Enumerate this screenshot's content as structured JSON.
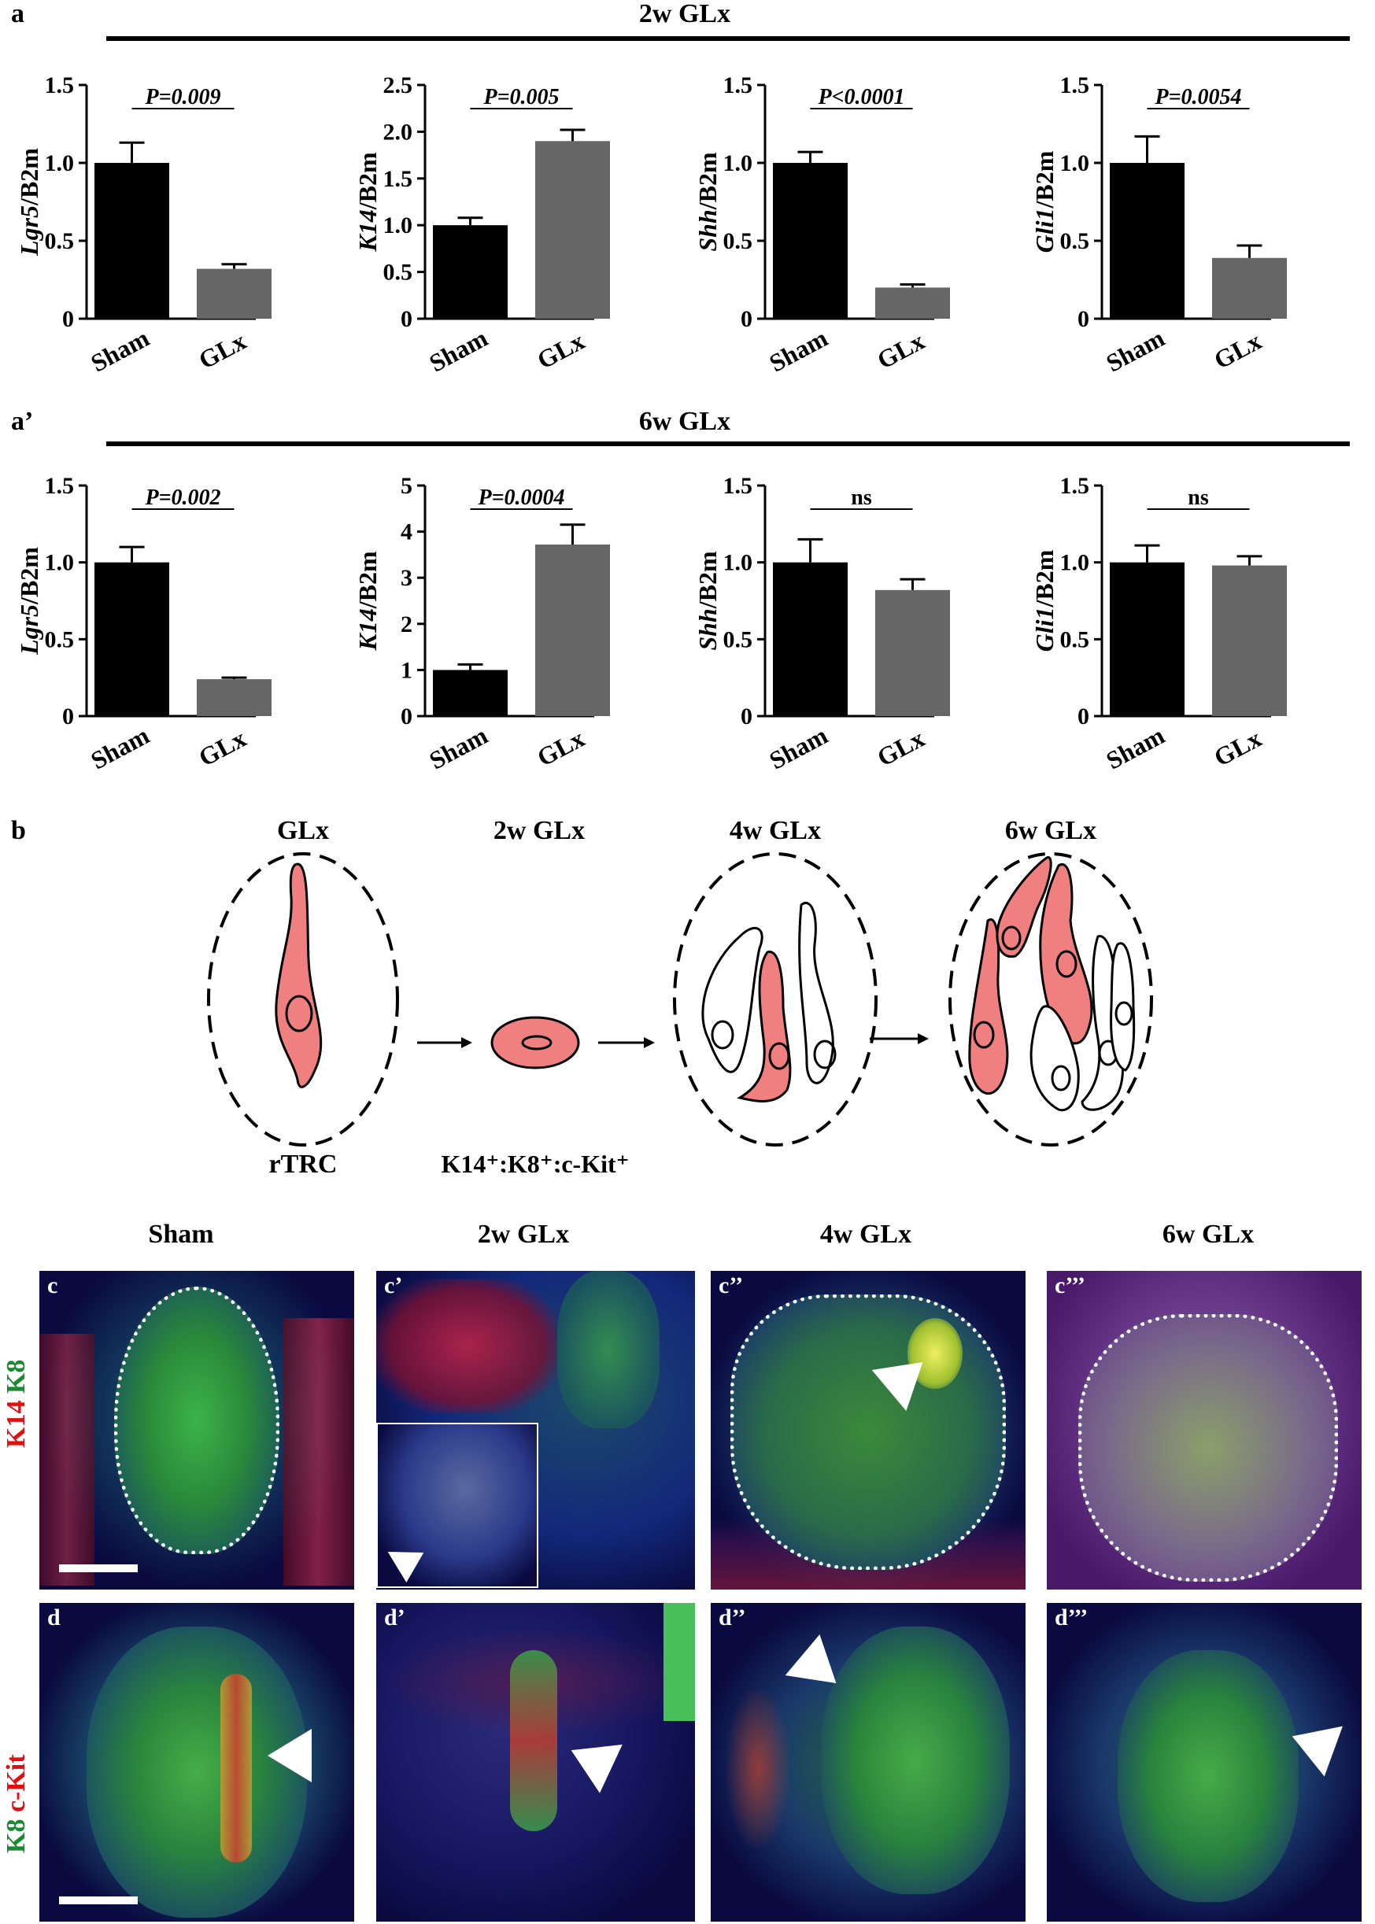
{
  "panel_a": {
    "label": "a",
    "header": "2w GLx",
    "charts": [
      {
        "ylabel_main": "Lgr5",
        "ylabel_sub": "/B2m",
        "ticks": [
          "0",
          "0.5",
          "1.0",
          "1.5"
        ],
        "ymax": 1.5,
        "pval": "P=0.009",
        "ns": false
      },
      {
        "ylabel_main": "K14",
        "ylabel_sub": "/B2m",
        "ticks": [
          "0",
          "0.5",
          "1.0",
          "1.5",
          "2.0",
          "2.5"
        ],
        "ymax": 2.5,
        "pval": "P=0.005",
        "ns": false
      },
      {
        "ylabel_main": "Shh",
        "ylabel_sub": "/B2m",
        "ticks": [
          "0",
          "0.5",
          "1.0",
          "1.5"
        ],
        "ymax": 1.5,
        "pval": "P<0.0001",
        "ns": false
      },
      {
        "ylabel_main": "Gli1",
        "ylabel_sub": "/B2m",
        "ticks": [
          "0",
          "0.5",
          "1.0",
          "1.5"
        ],
        "ymax": 1.5,
        "pval": "P=0.0054",
        "ns": false
      }
    ]
  },
  "panel_a2": {
    "label": "a’",
    "header": "6w GLx",
    "charts": [
      {
        "ylabel_main": "Lgr5",
        "ylabel_sub": "/B2m",
        "ticks": [
          "0",
          "0.5",
          "1.0",
          "1.5"
        ],
        "ymax": 1.5,
        "pval": "P=0.002",
        "ns": false
      },
      {
        "ylabel_main": "K14",
        "ylabel_sub": "/B2m",
        "ticks": [
          "0",
          "1",
          "2",
          "3",
          "4",
          "5"
        ],
        "ymax": 5,
        "pval": "P=0.0004",
        "ns": false
      },
      {
        "ylabel_main": "Shh",
        "ylabel_sub": "/B2m",
        "ticks": [
          "0",
          "0.5",
          "1.0",
          "1.5"
        ],
        "ymax": 1.5,
        "pval": "ns",
        "ns": true
      },
      {
        "ylabel_main": "Gli1",
        "ylabel_sub": "/B2m",
        "ticks": [
          "0",
          "0.5",
          "1.0",
          "1.5"
        ],
        "ymax": 1.5,
        "pval": "ns",
        "ns": true
      }
    ]
  },
  "chart_data": [
    {
      "type": "bar",
      "categories": [
        "Sham",
        "GLx"
      ],
      "values": [
        1.0,
        0.32
      ],
      "errors": [
        0.13,
        0.03
      ],
      "ylabel": "Lgr5/B2m",
      "ylim": [
        0,
        1.5
      ],
      "annotation": "P=0.009"
    },
    {
      "type": "bar",
      "categories": [
        "Sham",
        "GLx"
      ],
      "values": [
        1.0,
        1.9
      ],
      "errors": [
        0.08,
        0.12
      ],
      "ylabel": "K14/B2m",
      "ylim": [
        0,
        2.5
      ],
      "annotation": "P=0.005"
    },
    {
      "type": "bar",
      "categories": [
        "Sham",
        "GLx"
      ],
      "values": [
        1.0,
        0.2
      ],
      "errors": [
        0.07,
        0.02
      ],
      "ylabel": "Shh/B2m",
      "ylim": [
        0,
        1.5
      ],
      "annotation": "P<0.0001"
    },
    {
      "type": "bar",
      "categories": [
        "Sham",
        "GLx"
      ],
      "values": [
        1.0,
        0.39
      ],
      "errors": [
        0.17,
        0.08
      ],
      "ylabel": "Gli1/B2m",
      "ylim": [
        0,
        1.5
      ],
      "annotation": "P=0.0054"
    },
    {
      "type": "bar",
      "categories": [
        "Sham",
        "GLx"
      ],
      "values": [
        1.0,
        0.24
      ],
      "errors": [
        0.1,
        0.01
      ],
      "ylabel": "Lgr5/B2m",
      "ylim": [
        0,
        1.5
      ],
      "annotation": "P=0.002"
    },
    {
      "type": "bar",
      "categories": [
        "Sham",
        "GLx"
      ],
      "values": [
        1.0,
        3.72
      ],
      "errors": [
        0.12,
        0.43
      ],
      "ylabel": "K14/B2m",
      "ylim": [
        0,
        5
      ],
      "annotation": "P=0.0004"
    },
    {
      "type": "bar",
      "categories": [
        "Sham",
        "GLx"
      ],
      "values": [
        1.0,
        0.82
      ],
      "errors": [
        0.15,
        0.07
      ],
      "ylabel": "Shh/B2m",
      "ylim": [
        0,
        1.5
      ],
      "annotation": "ns"
    },
    {
      "type": "bar",
      "categories": [
        "Sham",
        "GLx"
      ],
      "values": [
        1.0,
        0.98
      ],
      "errors": [
        0.11,
        0.06
      ],
      "ylabel": "Gli1/B2m",
      "ylim": [
        0,
        1.5
      ],
      "annotation": "ns"
    }
  ],
  "colors": {
    "sham": "#000000",
    "glx": "#666666",
    "cell_fill": "#f08080",
    "micro_bg": "#0a0a40"
  },
  "panel_b": {
    "label": "b",
    "stages": [
      "GLx",
      "2w GLx",
      "4w GLx",
      "6w GLx"
    ],
    "caption_left": "rTRC",
    "caption_mid": "K14⁺;K8⁺;c-Kit⁺"
  },
  "panel_c": {
    "columns": [
      "Sham",
      "2w GLx",
      "4w GLx",
      "6w GLx"
    ],
    "row_c_stain_red": "K14",
    "row_c_stain_green": "K8",
    "row_d_stain_green": "K8",
    "row_d_stain_red": "c-Kit",
    "row_c_labels": [
      "c",
      "c’",
      "c’’",
      "c’’’"
    ],
    "row_d_labels": [
      "d",
      "d’",
      "d’’",
      "d’’’"
    ]
  }
}
